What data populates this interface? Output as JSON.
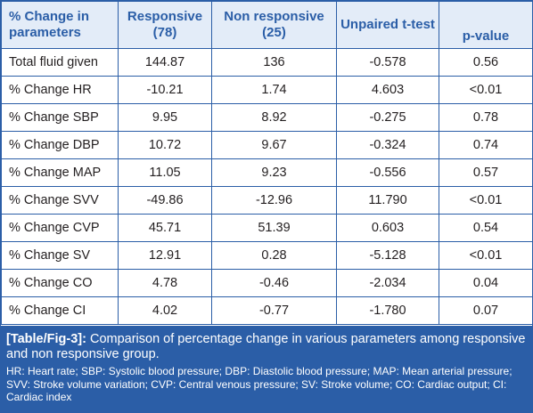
{
  "table": {
    "headers": [
      "% Change in parameters",
      "Responsive (78)",
      "Non responsive (25)",
      "Unpaired t-test",
      "p-value"
    ],
    "rows": [
      [
        "Total fluid given",
        "144.87",
        "136",
        "-0.578",
        "0.56"
      ],
      [
        "% Change HR",
        "-10.21",
        "1.74",
        "4.603",
        "<0.01"
      ],
      [
        "% Change SBP",
        "9.95",
        "8.92",
        "-0.275",
        "0.78"
      ],
      [
        "% Change DBP",
        "10.72",
        "9.67",
        "-0.324",
        "0.74"
      ],
      [
        "% Change MAP",
        "11.05",
        "9.23",
        "-0.556",
        "0.57"
      ],
      [
        "% Change SVV",
        "-49.86",
        "-12.96",
        "11.790",
        "<0.01"
      ],
      [
        "% Change CVP",
        "45.71",
        "51.39",
        "0.603",
        "0.54"
      ],
      [
        "% Change SV",
        "12.91",
        "0.28",
        "-5.128",
        "<0.01"
      ],
      [
        "% Change CO",
        "4.78",
        "-0.46",
        "-2.034",
        "0.04"
      ],
      [
        "% Change CI",
        "4.02",
        "-0.77",
        "-1.780",
        "0.07"
      ]
    ]
  },
  "caption": {
    "tag": "[Table/Fig-3]:",
    "text": "Comparison of percentage change in various parameters among responsive and non responsive group.",
    "notes": "HR: Heart rate; SBP: Systolic blood pressure; DBP: Diastolic blood pressure; MAP: Mean arterial pressure; SVV: Stroke volume variation; CVP: Central venous pressure; SV: Stroke volume; CO: Cardiac output; CI: Cardiac index"
  },
  "colors": {
    "accent": "#2b5ea7",
    "header_bg": "#e3ecf8",
    "text": "#231f20"
  }
}
